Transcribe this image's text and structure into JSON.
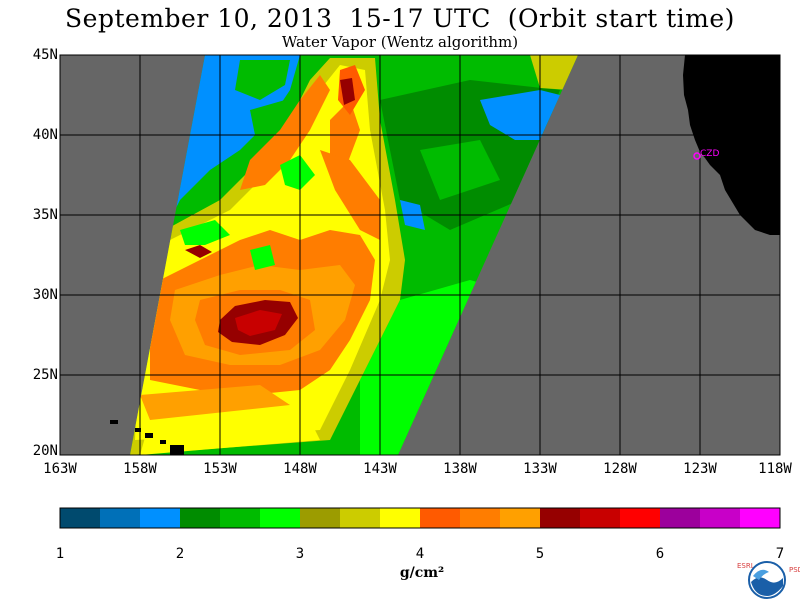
{
  "title": "September 10, 2013  15-17 UTC  (Orbit start time)",
  "subtitle": "Water Vapor (Wentz algorithm)",
  "lat_labels": [
    "45N",
    "40N",
    "35N",
    "30N",
    "25N",
    "20N"
  ],
  "lon_labels": [
    "163W",
    "158W",
    "153W",
    "148W",
    "143W",
    "138W",
    "133W",
    "128W",
    "123W",
    "118W"
  ],
  "station_label": "CZD",
  "colorbar": {
    "ticks": [
      "1",
      "2",
      "3",
      "4",
      "5",
      "6",
      "7"
    ],
    "unit": "g/cm²",
    "colors": [
      "#004a6e",
      "#0070b8",
      "#0090ff",
      "#008c00",
      "#00bb00",
      "#00ff00",
      "#9c9c00",
      "#cccc00",
      "#ffff00",
      "#ff5a00",
      "#ff7d00",
      "#ffa000",
      "#960000",
      "#c80000",
      "#ff0000",
      "#9c009c",
      "#c800c8",
      "#ff00ff"
    ]
  },
  "colors": {
    "no_data": "#666666",
    "land": "#000000",
    "station": "#ff00ff"
  },
  "logo": {
    "left_letters": "ESRL",
    "right_letters": "PSD",
    "center_text": "NOAA"
  }
}
